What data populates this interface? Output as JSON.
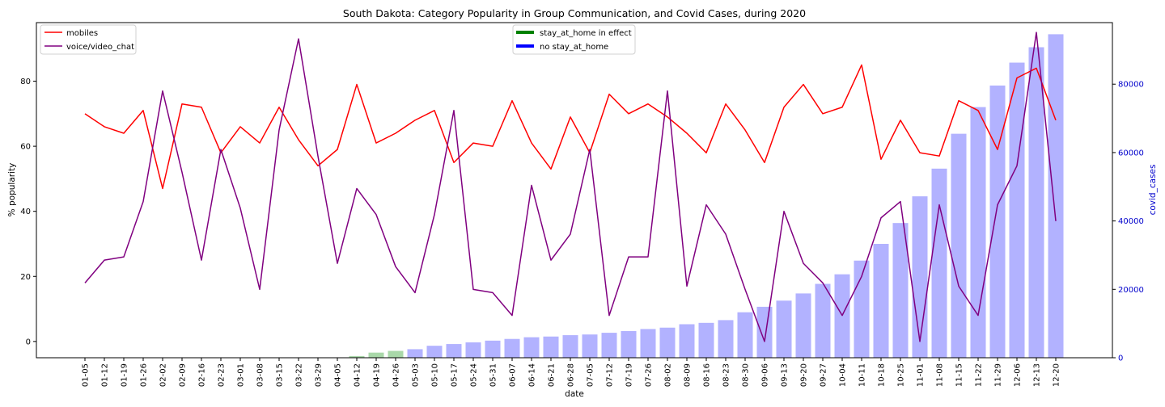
{
  "chart_data": {
    "type": "bar+line",
    "title": "South Dakota: Category Popularity in Group Communication, and Covid Cases, during 2020",
    "xlabel": "date",
    "ylabel_left": "% popularity",
    "ylabel_right": "covid_cases",
    "categories": [
      "01-05",
      "01-12",
      "01-19",
      "01-26",
      "02-02",
      "02-09",
      "02-16",
      "02-23",
      "03-01",
      "03-08",
      "03-15",
      "03-22",
      "03-29",
      "04-05",
      "04-12",
      "04-19",
      "04-26",
      "05-03",
      "05-10",
      "05-17",
      "05-24",
      "05-31",
      "06-07",
      "06-14",
      "06-21",
      "06-28",
      "07-05",
      "07-12",
      "07-19",
      "07-26",
      "08-02",
      "08-09",
      "08-16",
      "08-23",
      "08-30",
      "09-06",
      "09-13",
      "09-20",
      "09-27",
      "10-04",
      "10-11",
      "10-18",
      "10-25",
      "11-01",
      "11-08",
      "11-15",
      "11-22",
      "11-29",
      "12-06",
      "12-13",
      "12-20"
    ],
    "left_axis": {
      "ylim": [
        -5,
        98
      ],
      "ticks": [
        0,
        20,
        40,
        60,
        80
      ],
      "tick_labels": [
        "0",
        "20",
        "40",
        "60",
        "80"
      ]
    },
    "right_axis": {
      "ylim": [
        0,
        98000
      ],
      "ticks": [
        0,
        20000,
        40000,
        60000,
        80000
      ],
      "tick_labels": [
        "0",
        "20000",
        "40000",
        "60000",
        "80000"
      ],
      "color": "#0000cc"
    },
    "series": [
      {
        "name": "mobiles",
        "kind": "line",
        "axis": "left",
        "color": "#ff0000",
        "values": [
          70,
          66,
          64,
          71,
          47,
          73,
          72,
          58,
          66,
          61,
          72,
          62,
          54,
          59,
          79,
          61,
          64,
          68,
          71,
          55,
          61,
          60,
          74,
          61,
          53,
          69,
          58,
          76,
          70,
          73,
          69,
          64,
          58,
          73,
          65,
          55,
          72,
          79,
          70,
          72,
          85,
          56,
          68,
          58,
          57,
          74,
          71,
          59,
          81,
          84,
          68
        ]
      },
      {
        "name": "voice/video_chat",
        "kind": "line",
        "axis": "left",
        "color": "#800080",
        "values": [
          18,
          25,
          26,
          43,
          77,
          52,
          25,
          59,
          41,
          16,
          65,
          93,
          57,
          24,
          47,
          39,
          23,
          15,
          39,
          71,
          16,
          15,
          8,
          48,
          25,
          33,
          59,
          8,
          26,
          26,
          77,
          17,
          42,
          33,
          16,
          0,
          40,
          24,
          18,
          8,
          20,
          38,
          43,
          0,
          42,
          17,
          8,
          42,
          54,
          95,
          37
        ]
      }
    ],
    "covid_cases": {
      "values": [
        0,
        0,
        0,
        0,
        0,
        0,
        0,
        0,
        0,
        0,
        0,
        0,
        0,
        0,
        500,
        1500,
        2000,
        2500,
        3500,
        4000,
        4500,
        5000,
        5500,
        6000,
        6200,
        6600,
        6800,
        7300,
        7800,
        8400,
        8800,
        9800,
        10200,
        11000,
        13300,
        14900,
        16700,
        18800,
        21600,
        24400,
        28400,
        33300,
        39400,
        47200,
        55300,
        65500,
        73300,
        79600,
        86300,
        90800,
        94600
      ],
      "in_effect_flags": [
        false,
        false,
        false,
        false,
        false,
        false,
        false,
        false,
        false,
        false,
        false,
        false,
        false,
        false,
        true,
        true,
        true,
        false,
        false,
        false,
        false,
        false,
        false,
        false,
        false,
        false,
        false,
        false,
        false,
        false,
        false,
        false,
        false,
        false,
        false,
        false,
        false,
        false,
        false,
        false,
        false,
        false,
        false,
        false,
        false,
        false,
        false,
        false,
        false,
        false,
        false
      ],
      "colors": {
        "stay_at_home": "#a9d8a9",
        "no_stay_at_home": "#b2b2ff"
      }
    },
    "legend_left": {
      "position": "top-left",
      "entries": [
        {
          "label": "mobiles",
          "color": "#ff0000"
        },
        {
          "label": "voice/video_chat",
          "color": "#800080"
        }
      ]
    },
    "legend_center": {
      "position": "top-center",
      "entries": [
        {
          "label": "stay_at_home in effect",
          "color": "#008000"
        },
        {
          "label": "no stay_at_home",
          "color": "#0000ff"
        }
      ]
    },
    "grid": false
  }
}
